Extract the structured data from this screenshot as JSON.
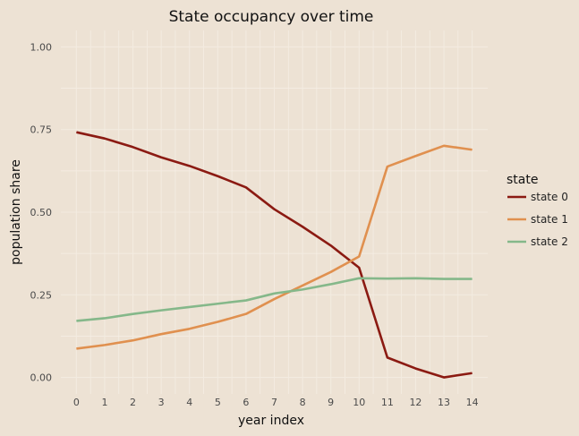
{
  "chart_data": {
    "type": "line",
    "title": "State occupancy over time",
    "xlabel": "year index",
    "ylabel": "population share",
    "x": [
      0,
      1,
      2,
      3,
      4,
      5,
      6,
      7,
      8,
      9,
      10,
      11,
      12,
      13,
      14
    ],
    "xlim": [
      -0.55,
      14.55
    ],
    "ylim": [
      -0.05,
      1.05
    ],
    "yticks": [
      0.0,
      0.25,
      0.5,
      0.75,
      1.0
    ],
    "ytick_labels": [
      "0.00",
      "0.25",
      "0.50",
      "0.75",
      "1.00"
    ],
    "xtick_labels": [
      "0",
      "1",
      "2",
      "3",
      "4",
      "5",
      "6",
      "7",
      "8",
      "9",
      "10",
      "11",
      "12",
      "13",
      "14"
    ],
    "grid": true,
    "legend_title": "state",
    "legend_position": "right",
    "series": [
      {
        "name": "state 0",
        "color": "#8b1a12",
        "values": [
          0.742,
          0.723,
          0.697,
          0.666,
          0.64,
          0.609,
          0.575,
          0.509,
          0.456,
          0.399,
          0.332,
          0.06,
          0.027,
          0.0,
          0.013
        ]
      },
      {
        "name": "state 1",
        "color": "#e0904f",
        "values": [
          0.087,
          0.098,
          0.112,
          0.131,
          0.147,
          0.168,
          0.192,
          0.237,
          0.278,
          0.319,
          0.366,
          0.638,
          0.67,
          0.701,
          0.689
        ]
      },
      {
        "name": "state 2",
        "color": "#85b88a",
        "values": [
          0.171,
          0.179,
          0.192,
          0.203,
          0.213,
          0.223,
          0.233,
          0.254,
          0.266,
          0.282,
          0.3,
          0.299,
          0.3,
          0.298,
          0.298
        ]
      }
    ]
  }
}
